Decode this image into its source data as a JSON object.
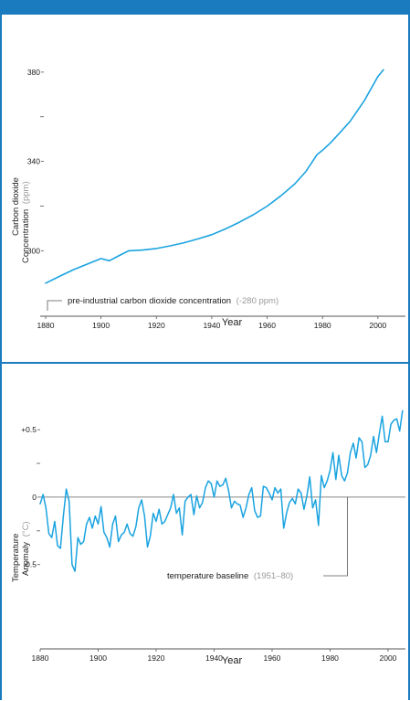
{
  "colors": {
    "frame": "#1a7bbf",
    "series": "#1aa3e0",
    "axis": "#555555",
    "baseline": "#888888",
    "muted": "#9a9a9a"
  },
  "chart_data": [
    {
      "type": "line",
      "title": "",
      "xlabel": "Year",
      "ylabel_main": "Carbon dioxide",
      "ylabel_line2": "Concentration",
      "ylabel_unit": "(ppm)",
      "xlim": [
        1880,
        2005
      ],
      "ylim": [
        285,
        382
      ],
      "x_ticks": [
        1880,
        1900,
        1920,
        1940,
        1960,
        1980,
        2000
      ],
      "x_tick_labels": [
        "1880",
        "1900",
        "1920",
        "1940",
        "1960",
        "1980",
        "2000"
      ],
      "y_ticks": [
        {
          "value": 300,
          "label": "300"
        },
        {
          "value": 320,
          "label": ""
        },
        {
          "value": 340,
          "label": "340"
        },
        {
          "value": 360,
          "label": ""
        },
        {
          "value": 380,
          "label": "380"
        }
      ],
      "annotation": {
        "text": "pre-industrial carbon dioxide concentration",
        "value_text": "(-280 ppm)"
      },
      "series": [
        {
          "x": [
            1880,
            1885,
            1890,
            1895,
            1900,
            1903,
            1906,
            1910,
            1915,
            1920,
            1925,
            1930,
            1935,
            1940,
            1945,
            1950,
            1955,
            1960,
            1965,
            1970,
            1974,
            1978,
            1980,
            1983,
            1986,
            1990,
            1995,
            2000,
            2002
          ],
          "y": [
            285.5,
            288.5,
            291.5,
            294,
            296.5,
            295.5,
            297.5,
            300,
            300.3,
            301,
            302.2,
            303.6,
            305.3,
            307.2,
            309.8,
            312.8,
            316.1,
            320,
            324.6,
            330,
            335.5,
            343,
            345,
            348.5,
            352.5,
            358,
            367,
            378,
            381
          ]
        }
      ]
    },
    {
      "type": "line",
      "title": "",
      "xlabel": "Year",
      "ylabel_main": "Temperature",
      "ylabel_line2": "Anomaly",
      "ylabel_unit": "(°C)",
      "xlim": [
        1880,
        2006
      ],
      "ylim": [
        -0.8,
        0.65
      ],
      "x_ticks": [
        1880,
        1900,
        1920,
        1940,
        1960,
        1980,
        2000
      ],
      "x_tick_labels": [
        "1880",
        "1900",
        "1920",
        "1940",
        "1960",
        "1980",
        "2000"
      ],
      "y_ticks": [
        {
          "value": 0.5,
          "label": "+0.5"
        },
        {
          "value": 0.25,
          "label": ""
        },
        {
          "value": 0,
          "label": "0"
        },
        {
          "value": -0.25,
          "label": ""
        },
        {
          "value": -0.5,
          "label": "-0.5"
        }
      ],
      "baseline_value": 0,
      "annotation": {
        "text": "temperature baseline",
        "value_text": "(1951–80)",
        "pointer_year": 1986
      },
      "series": [
        {
          "x": [
            1880,
            1881,
            1882,
            1883,
            1884,
            1885,
            1886,
            1887,
            1888,
            1889,
            1890,
            1891,
            1892,
            1893,
            1894,
            1895,
            1896,
            1897,
            1898,
            1899,
            1900,
            1901,
            1902,
            1903,
            1904,
            1905,
            1906,
            1907,
            1908,
            1909,
            1910,
            1911,
            1912,
            1913,
            1914,
            1915,
            1916,
            1917,
            1918,
            1919,
            1920,
            1921,
            1922,
            1923,
            1924,
            1925,
            1926,
            1927,
            1928,
            1929,
            1930,
            1931,
            1932,
            1933,
            1934,
            1935,
            1936,
            1937,
            1938,
            1939,
            1940,
            1941,
            1942,
            1943,
            1944,
            1945,
            1946,
            1947,
            1948,
            1949,
            1950,
            1951,
            1952,
            1953,
            1954,
            1955,
            1956,
            1957,
            1958,
            1959,
            1960,
            1961,
            1962,
            1963,
            1964,
            1965,
            1966,
            1967,
            1968,
            1969,
            1970,
            1971,
            1972,
            1973,
            1974,
            1975,
            1976,
            1977,
            1978,
            1979,
            1980,
            1981,
            1982,
            1983,
            1984,
            1985,
            1986,
            1987,
            1988,
            1989,
            1990,
            1991,
            1992,
            1993,
            1994,
            1995,
            1996,
            1997,
            1998,
            1999,
            2000,
            2001,
            2002,
            2003,
            2004,
            2005
          ],
          "y": [
            -0.05,
            0.02,
            -0.08,
            -0.27,
            -0.3,
            -0.18,
            -0.36,
            -0.38,
            -0.14,
            0.06,
            -0.03,
            -0.5,
            -0.55,
            -0.3,
            -0.35,
            -0.33,
            -0.2,
            -0.15,
            -0.23,
            -0.14,
            -0.2,
            -0.07,
            -0.26,
            -0.3,
            -0.37,
            -0.2,
            -0.14,
            -0.33,
            -0.28,
            -0.26,
            -0.2,
            -0.27,
            -0.29,
            -0.22,
            -0.08,
            -0.02,
            -0.14,
            -0.37,
            -0.29,
            -0.12,
            -0.18,
            -0.09,
            -0.2,
            -0.18,
            -0.13,
            -0.08,
            0.02,
            -0.12,
            -0.08,
            -0.28,
            -0.03,
            0.0,
            0.02,
            -0.13,
            0.01,
            -0.08,
            -0.04,
            0.07,
            0.12,
            0.1,
            0.0,
            0.12,
            0.08,
            0.09,
            0.14,
            0.05,
            -0.08,
            -0.03,
            -0.05,
            -0.06,
            -0.15,
            -0.08,
            0.02,
            0.07,
            -0.1,
            -0.15,
            -0.14,
            0.08,
            0.07,
            0.03,
            -0.02,
            0.07,
            0.03,
            0.06,
            -0.23,
            -0.12,
            -0.04,
            -0.01,
            -0.05,
            0.06,
            0.03,
            -0.09,
            0.01,
            0.15,
            -0.08,
            -0.02,
            -0.21,
            0.16,
            0.07,
            0.12,
            0.2,
            0.33,
            0.13,
            0.31,
            0.16,
            0.12,
            0.18,
            0.33,
            0.4,
            0.29,
            0.44,
            0.41,
            0.22,
            0.24,
            0.31,
            0.45,
            0.33,
            0.47,
            0.6,
            0.41,
            0.41,
            0.54,
            0.57,
            0.58,
            0.49,
            0.64
          ]
        }
      ]
    }
  ]
}
